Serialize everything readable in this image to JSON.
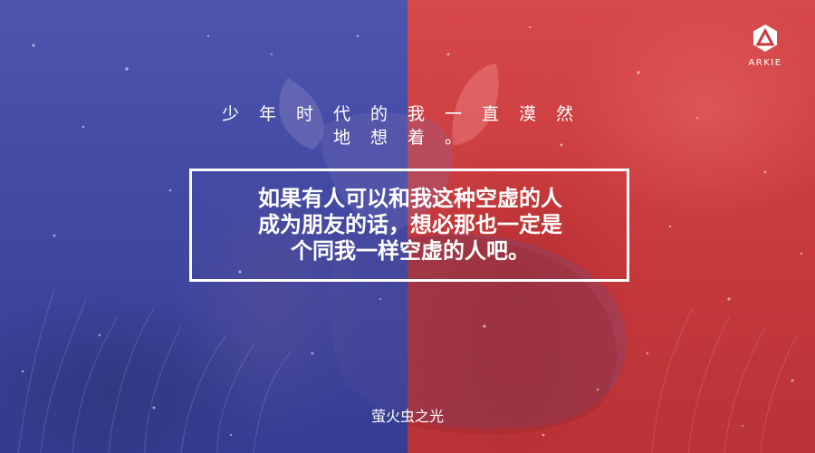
{
  "colors": {
    "left_panel": "#4149a3",
    "right_panel": "#c83a3d",
    "text": "#ffffff"
  },
  "logo": {
    "icon": "triangle-logo-icon",
    "text": "ARKIE"
  },
  "verse": {
    "line1": "少年时代的我一直漠然",
    "line2": "地想着。"
  },
  "quote": {
    "line1": "如果有人可以和我这种空虚的人",
    "line2": "成为朋友的话，想必那也一定是",
    "line3": "个同我一样空虚的人吧。"
  },
  "signature": "萤火虫之光"
}
